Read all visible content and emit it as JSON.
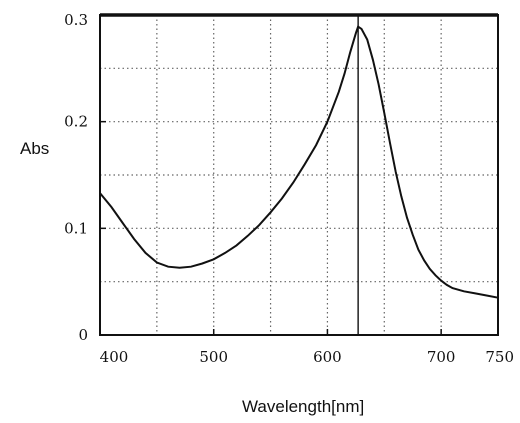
{
  "chart_data": {
    "type": "line",
    "title": "",
    "xlabel": "Wavelength[nm]",
    "ylabel": "Abs",
    "xlim": [
      400,
      750
    ],
    "ylim": [
      0,
      0.3
    ],
    "x_ticks": [
      400,
      500,
      600,
      700,
      750
    ],
    "x_tick_labels": [
      "400",
      "500",
      "600",
      "700",
      "750"
    ],
    "y_ticks": [
      0,
      0.1,
      0.2,
      0.3
    ],
    "y_tick_labels": [
      "0",
      "0.1",
      "0.2",
      "0.3"
    ],
    "x_grid": [
      450,
      500,
      550,
      600,
      650,
      700
    ],
    "y_grid": [
      0.05,
      0.1,
      0.15,
      0.2,
      0.25
    ],
    "grid": true,
    "legend": "none",
    "marker_line_x": 627,
    "series": [
      {
        "color": "#111111",
        "x": [
          400,
          410,
          420,
          430,
          440,
          450,
          460,
          470,
          480,
          490,
          500,
          510,
          520,
          530,
          540,
          550,
          560,
          570,
          580,
          590,
          600,
          610,
          615,
          620,
          625,
          627,
          630,
          635,
          640,
          645,
          650,
          655,
          660,
          665,
          670,
          675,
          680,
          685,
          690,
          695,
          700,
          705,
          710,
          720,
          730,
          740,
          750
        ],
        "y": [
          0.133,
          0.12,
          0.105,
          0.09,
          0.077,
          0.068,
          0.064,
          0.063,
          0.064,
          0.067,
          0.071,
          0.077,
          0.084,
          0.093,
          0.103,
          0.115,
          0.128,
          0.143,
          0.16,
          0.178,
          0.2,
          0.228,
          0.245,
          0.265,
          0.283,
          0.289,
          0.287,
          0.277,
          0.258,
          0.235,
          0.208,
          0.18,
          0.153,
          0.13,
          0.11,
          0.094,
          0.08,
          0.07,
          0.062,
          0.056,
          0.051,
          0.047,
          0.044,
          0.041,
          0.039,
          0.037,
          0.035
        ]
      }
    ]
  }
}
